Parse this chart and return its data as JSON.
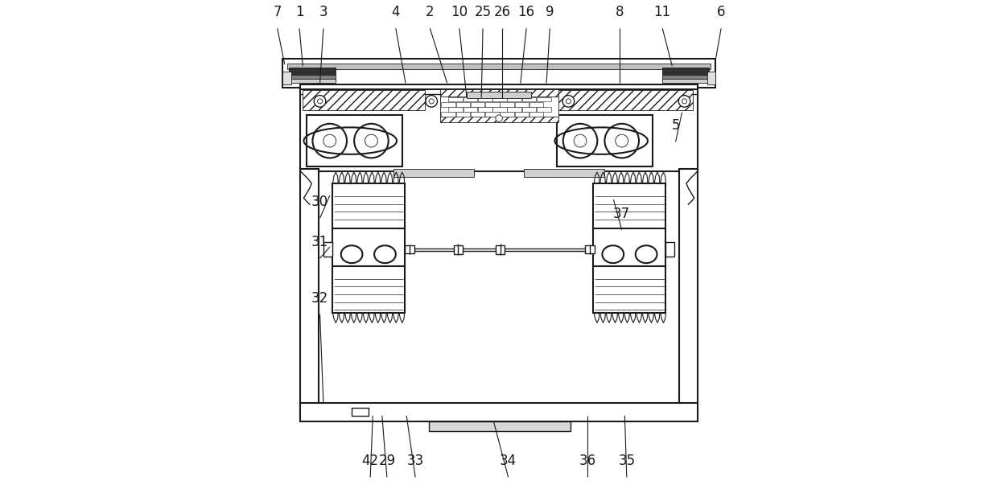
{
  "background_color": "#ffffff",
  "line_color": "#1a1a1a",
  "fig_width": 12.39,
  "fig_height": 6.08,
  "leaders": {
    "7": [
      0.048,
      0.96,
      0.063,
      0.868
    ],
    "1": [
      0.093,
      0.96,
      0.1,
      0.865
    ],
    "3": [
      0.142,
      0.96,
      0.135,
      0.83
    ],
    "4": [
      0.29,
      0.96,
      0.31,
      0.83
    ],
    "2": [
      0.36,
      0.96,
      0.395,
      0.83
    ],
    "10": [
      0.42,
      0.96,
      0.435,
      0.8
    ],
    "25": [
      0.468,
      0.96,
      0.465,
      0.8
    ],
    "26": [
      0.508,
      0.96,
      0.508,
      0.8
    ],
    "16": [
      0.557,
      0.96,
      0.545,
      0.83
    ],
    "9": [
      0.605,
      0.96,
      0.598,
      0.83
    ],
    "8": [
      0.748,
      0.96,
      0.748,
      0.83
    ],
    "11": [
      0.835,
      0.96,
      0.855,
      0.865
    ],
    "6": [
      0.955,
      0.96,
      0.942,
      0.868
    ],
    "5": [
      0.862,
      0.728,
      0.875,
      0.77
    ],
    "30": [
      0.135,
      0.572,
      0.155,
      0.6
    ],
    "31": [
      0.135,
      0.49,
      0.155,
      0.495
    ],
    "32": [
      0.135,
      0.375,
      0.142,
      0.178
    ],
    "37": [
      0.752,
      0.548,
      0.735,
      0.592
    ],
    "42": [
      0.238,
      0.042,
      0.243,
      0.15
    ],
    "29": [
      0.272,
      0.042,
      0.262,
      0.15
    ],
    "33": [
      0.33,
      0.042,
      0.312,
      0.15
    ],
    "34": [
      0.52,
      0.042,
      0.49,
      0.138
    ],
    "36": [
      0.682,
      0.042,
      0.682,
      0.15
    ],
    "35": [
      0.762,
      0.042,
      0.758,
      0.15
    ]
  }
}
